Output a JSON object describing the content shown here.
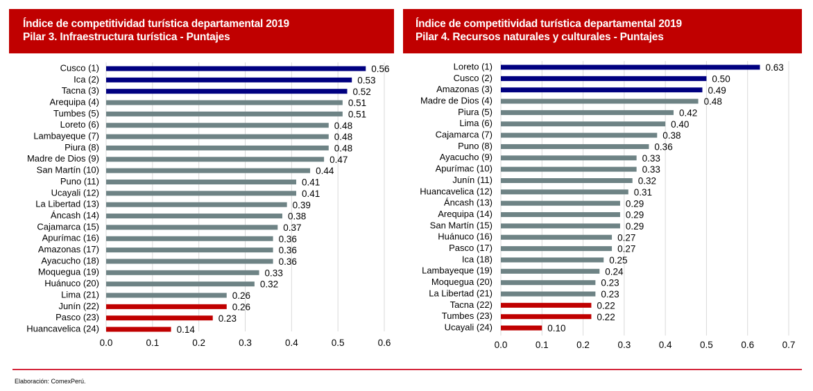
{
  "colors": {
    "header_bg": "#c00000",
    "top3": "#000080",
    "middle": "#6e8385",
    "bottom3": "#c00000",
    "footer_line": "#d4263b"
  },
  "footer": {
    "source": "Elaboración:  ComexPerú."
  },
  "chart_data": [
    {
      "type": "bar",
      "orientation": "horizontal",
      "title": "Índice de competitividad turística departamental 2019",
      "subtitle": "Pilar 3. Infraestructura turística - Puntajes",
      "xlabel": "",
      "ylabel": "",
      "xlim": [
        0,
        0.6
      ],
      "ticks": [
        "0.0",
        "0.1",
        "0.2",
        "0.3",
        "0.4",
        "0.5",
        "0.6"
      ],
      "tick_values": [
        0,
        0.1,
        0.2,
        0.3,
        0.4,
        0.5,
        0.6
      ],
      "grid": true,
      "categories": [
        "Cusco (1)",
        "Ica (2)",
        "Tacna (3)",
        "Arequipa (4)",
        "Tumbes (5)",
        "Loreto (6)",
        "Lambayeque (7)",
        "Piura (8)",
        "Madre de Dios (9)",
        "San Martín (10)",
        "Puno (11)",
        "Ucayali (12)",
        "La Libertad (13)",
        "Áncash (14)",
        "Cajamarca (15)",
        "Apurímac (16)",
        "Amazonas (17)",
        "Ayacucho (18)",
        "Moquegua (19)",
        "Huánuco (20)",
        "Lima (21)",
        "Junín (22)",
        "Pasco (23)",
        "Huancavelica (24)"
      ],
      "values": [
        0.56,
        0.53,
        0.52,
        0.51,
        0.51,
        0.48,
        0.48,
        0.48,
        0.47,
        0.44,
        0.41,
        0.41,
        0.39,
        0.38,
        0.37,
        0.36,
        0.36,
        0.36,
        0.33,
        0.32,
        0.26,
        0.26,
        0.23,
        0.14
      ],
      "value_labels": [
        "0.56",
        "0.53",
        "0.52",
        "0.51",
        "0.51",
        "0.48",
        "0.48",
        "0.48",
        "0.47",
        "0.44",
        "0.41",
        "0.41",
        "0.39",
        "0.38",
        "0.37",
        "0.36",
        "0.36",
        "0.36",
        "0.33",
        "0.32",
        "0.26",
        "0.26",
        "0.23",
        "0.14"
      ],
      "highlight": "top 3 in navy, bottom 3 in red, rest gray"
    },
    {
      "type": "bar",
      "orientation": "horizontal",
      "title": "Índice de competitividad turística departamental 2019",
      "subtitle": "Pilar 4. Recursos naturales y culturales - Puntajes",
      "xlabel": "",
      "ylabel": "",
      "xlim": [
        0,
        0.7
      ],
      "ticks": [
        "0.0",
        "0.1",
        "0.2",
        "0.3",
        "0.4",
        "0.5",
        "0.6",
        "0.7"
      ],
      "tick_values": [
        0,
        0.1,
        0.2,
        0.3,
        0.4,
        0.5,
        0.6,
        0.7
      ],
      "grid": true,
      "categories": [
        "Loreto (1)",
        "Cusco (2)",
        "Amazonas (3)",
        "Madre de Dios (4)",
        "Piura (5)",
        "Lima (6)",
        "Cajamarca (7)",
        "Puno (8)",
        "Ayacucho (9)",
        "Apurímac (10)",
        "Junín (11)",
        "Huancavelica (12)",
        "Áncash (13)",
        "Arequipa (14)",
        "San Martín (15)",
        "Huánuco (16)",
        "Pasco (17)",
        "Ica (18)",
        "Lambayeque (19)",
        "Moquegua (20)",
        "La Libertad (21)",
        "Tacna (22)",
        "Tumbes (23)",
        "Ucayali (24)"
      ],
      "values": [
        0.63,
        0.5,
        0.49,
        0.48,
        0.42,
        0.4,
        0.38,
        0.36,
        0.33,
        0.33,
        0.32,
        0.31,
        0.29,
        0.29,
        0.29,
        0.27,
        0.27,
        0.25,
        0.24,
        0.23,
        0.23,
        0.22,
        0.22,
        0.1
      ],
      "value_labels": [
        "0.63",
        "0.50",
        "0.49",
        "0.48",
        "0.42",
        "0.40",
        "0.38",
        "0.36",
        "0.33",
        "0.33",
        "0.32",
        "0.31",
        "0.29",
        "0.29",
        "0.29",
        "0.27",
        "0.27",
        "0.25",
        "0.24",
        "0.23",
        "0.23",
        "0.22",
        "0.22",
        "0.10"
      ],
      "highlight": "top 3 in navy, bottom 3 in red, rest gray"
    }
  ]
}
